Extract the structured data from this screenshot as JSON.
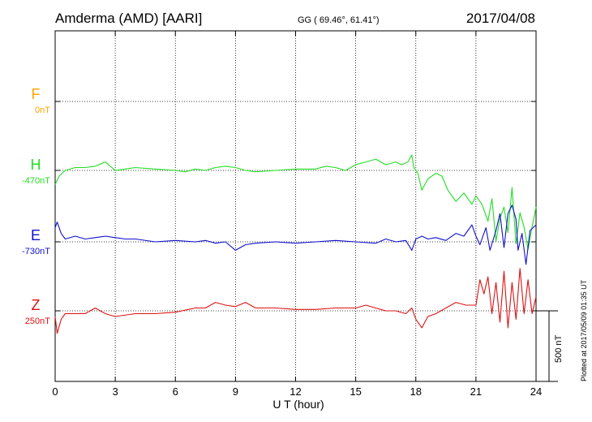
{
  "header": {
    "station": "Amderma (AMD)  [AARI]",
    "coords": "GG ( 69.46°,  61.41°)",
    "date": "2017/04/08"
  },
  "plotted_note": "Plotted at 2017/05/09 01:35 UT",
  "scale_label": "500 nT",
  "colors": {
    "F": "#ffa500",
    "H": "#22dd22",
    "E": "#1010cc",
    "Z": "#dd1111",
    "axis": "#000000"
  },
  "chart_data": {
    "type": "line",
    "xlabel": "U T (hour)",
    "xlim": [
      0,
      24
    ],
    "x_ticks": [
      0,
      3,
      6,
      9,
      12,
      15,
      18,
      21,
      24
    ],
    "scale_bar_nT": 500,
    "params": [
      {
        "letter": "F",
        "baseline": "0nT",
        "color": "#ffa500"
      },
      {
        "letter": "H",
        "baseline": "-470nT",
        "color": "#22dd22"
      },
      {
        "letter": "E",
        "baseline": "-730nT",
        "color": "#1010cc"
      },
      {
        "letter": "Z",
        "baseline": "250nT",
        "color": "#dd1111"
      }
    ],
    "series": [
      {
        "name": "H",
        "color": "#22dd22",
        "x": [
          0,
          0.2,
          0.5,
          1.0,
          1.5,
          2.0,
          2.5,
          3.0,
          3.5,
          4.0,
          5.0,
          6.0,
          6.5,
          7.0,
          7.5,
          8.0,
          8.5,
          9.0,
          9.5,
          10.0,
          11.0,
          12.0,
          13.0,
          13.5,
          14.0,
          14.5,
          15.0,
          15.5,
          16.0,
          16.5,
          17.0,
          17.3,
          17.6,
          17.8,
          17.9,
          18.1,
          18.3,
          18.6,
          19.0,
          19.3,
          19.6,
          20.0,
          20.4,
          20.8,
          21.0,
          21.3,
          21.6,
          21.8,
          22.0,
          22.2,
          22.4,
          22.6,
          22.8,
          23.0,
          23.2,
          23.4,
          23.6,
          23.8,
          24.0
        ],
        "y": [
          -100,
          -40,
          0,
          20,
          20,
          30,
          60,
          0,
          10,
          20,
          10,
          0,
          -10,
          10,
          0,
          20,
          30,
          20,
          0,
          -10,
          0,
          10,
          10,
          30,
          20,
          0,
          40,
          60,
          80,
          40,
          60,
          40,
          60,
          110,
          20,
          -20,
          -140,
          -60,
          -20,
          -40,
          -140,
          -220,
          -160,
          -240,
          -180,
          -240,
          -360,
          -200,
          -500,
          -340,
          -260,
          -440,
          -120,
          -520,
          -300,
          -400,
          -560,
          -400,
          -260
        ]
      },
      {
        "name": "E",
        "color": "#1010cc",
        "x": [
          0,
          0.1,
          0.3,
          0.5,
          1.0,
          1.5,
          2.0,
          2.5,
          3.0,
          3.5,
          4.0,
          5.0,
          6.0,
          7.0,
          7.5,
          8.0,
          8.5,
          9.0,
          9.5,
          10.0,
          11.0,
          12.0,
          13.0,
          14.0,
          15.0,
          16.0,
          16.5,
          17.0,
          17.5,
          17.8,
          18.0,
          18.3,
          18.6,
          19.0,
          19.5,
          20.0,
          20.4,
          20.8,
          21.0,
          21.2,
          21.5,
          21.7,
          22.0,
          22.2,
          22.4,
          22.6,
          22.8,
          23.0,
          23.1,
          23.3,
          23.5,
          23.7,
          24.0
        ],
        "y": [
          100,
          140,
          60,
          20,
          40,
          20,
          30,
          40,
          30,
          20,
          20,
          0,
          10,
          0,
          10,
          -10,
          0,
          -60,
          -20,
          -10,
          0,
          -10,
          0,
          10,
          0,
          -10,
          20,
          0,
          10,
          -60,
          20,
          40,
          20,
          30,
          10,
          60,
          40,
          120,
          40,
          -20,
          100,
          -60,
          80,
          200,
          -40,
          200,
          260,
          160,
          -60,
          60,
          -160,
          80,
          120
        ]
      },
      {
        "name": "Z",
        "color": "#dd1111",
        "x": [
          0,
          0.1,
          0.3,
          0.5,
          1.0,
          1.5,
          2.0,
          2.5,
          3.0,
          4.0,
          5.0,
          6.0,
          7.0,
          7.5,
          8.0,
          8.5,
          9.0,
          9.5,
          10.0,
          11.0,
          12.0,
          13.0,
          14.0,
          15.0,
          15.5,
          16.0,
          16.5,
          17.0,
          17.5,
          17.8,
          18.0,
          18.3,
          18.6,
          19.0,
          19.5,
          20.0,
          20.5,
          21.0,
          21.2,
          21.4,
          21.6,
          21.8,
          22.0,
          22.2,
          22.4,
          22.6,
          22.8,
          23.0,
          23.2,
          23.4,
          23.6,
          23.8,
          24.0
        ],
        "y": [
          -40,
          -160,
          -60,
          -20,
          -20,
          -20,
          20,
          -20,
          -40,
          -20,
          -20,
          -10,
          20,
          20,
          60,
          40,
          30,
          60,
          20,
          20,
          10,
          10,
          20,
          20,
          40,
          20,
          0,
          0,
          -20,
          20,
          -60,
          -120,
          -40,
          -20,
          20,
          60,
          40,
          40,
          220,
          120,
          240,
          -20,
          200,
          -80,
          280,
          -120,
          200,
          -60,
          300,
          -20,
          220,
          -20,
          100
        ]
      }
    ]
  }
}
